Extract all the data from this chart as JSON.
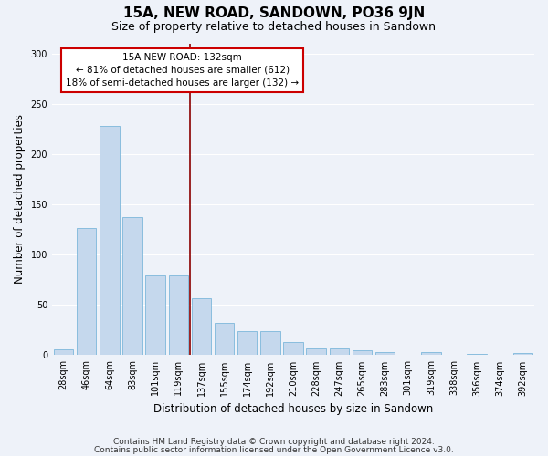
{
  "title": "15A, NEW ROAD, SANDOWN, PO36 9JN",
  "subtitle": "Size of property relative to detached houses in Sandown",
  "xlabel": "Distribution of detached houses by size in Sandown",
  "ylabel": "Number of detached properties",
  "categories": [
    "28sqm",
    "46sqm",
    "64sqm",
    "83sqm",
    "101sqm",
    "119sqm",
    "137sqm",
    "155sqm",
    "174sqm",
    "192sqm",
    "210sqm",
    "228sqm",
    "247sqm",
    "265sqm",
    "283sqm",
    "301sqm",
    "319sqm",
    "338sqm",
    "356sqm",
    "374sqm",
    "392sqm"
  ],
  "values": [
    6,
    126,
    228,
    137,
    79,
    79,
    57,
    32,
    24,
    24,
    13,
    7,
    7,
    5,
    3,
    0,
    3,
    0,
    1,
    0,
    2
  ],
  "bar_color": "#c5d8ed",
  "bar_edge_color": "#6aaed6",
  "bar_width": 0.85,
  "vline_x_index": 5.5,
  "vline_color": "#8b0000",
  "annotation_text": "15A NEW ROAD: 132sqm\n← 81% of detached houses are smaller (612)\n18% of semi-detached houses are larger (132) →",
  "annotation_box_color": "#ffffff",
  "annotation_box_edge": "#cc0000",
  "ylim": [
    0,
    310
  ],
  "yticks": [
    0,
    50,
    100,
    150,
    200,
    250,
    300
  ],
  "footer_line1": "Contains HM Land Registry data © Crown copyright and database right 2024.",
  "footer_line2": "Contains public sector information licensed under the Open Government Licence v3.0.",
  "background_color": "#eef2f9",
  "grid_color": "#ffffff",
  "title_fontsize": 11,
  "subtitle_fontsize": 9,
  "axis_label_fontsize": 8.5,
  "tick_fontsize": 7,
  "annotation_fontsize": 7.5,
  "footer_fontsize": 6.5
}
